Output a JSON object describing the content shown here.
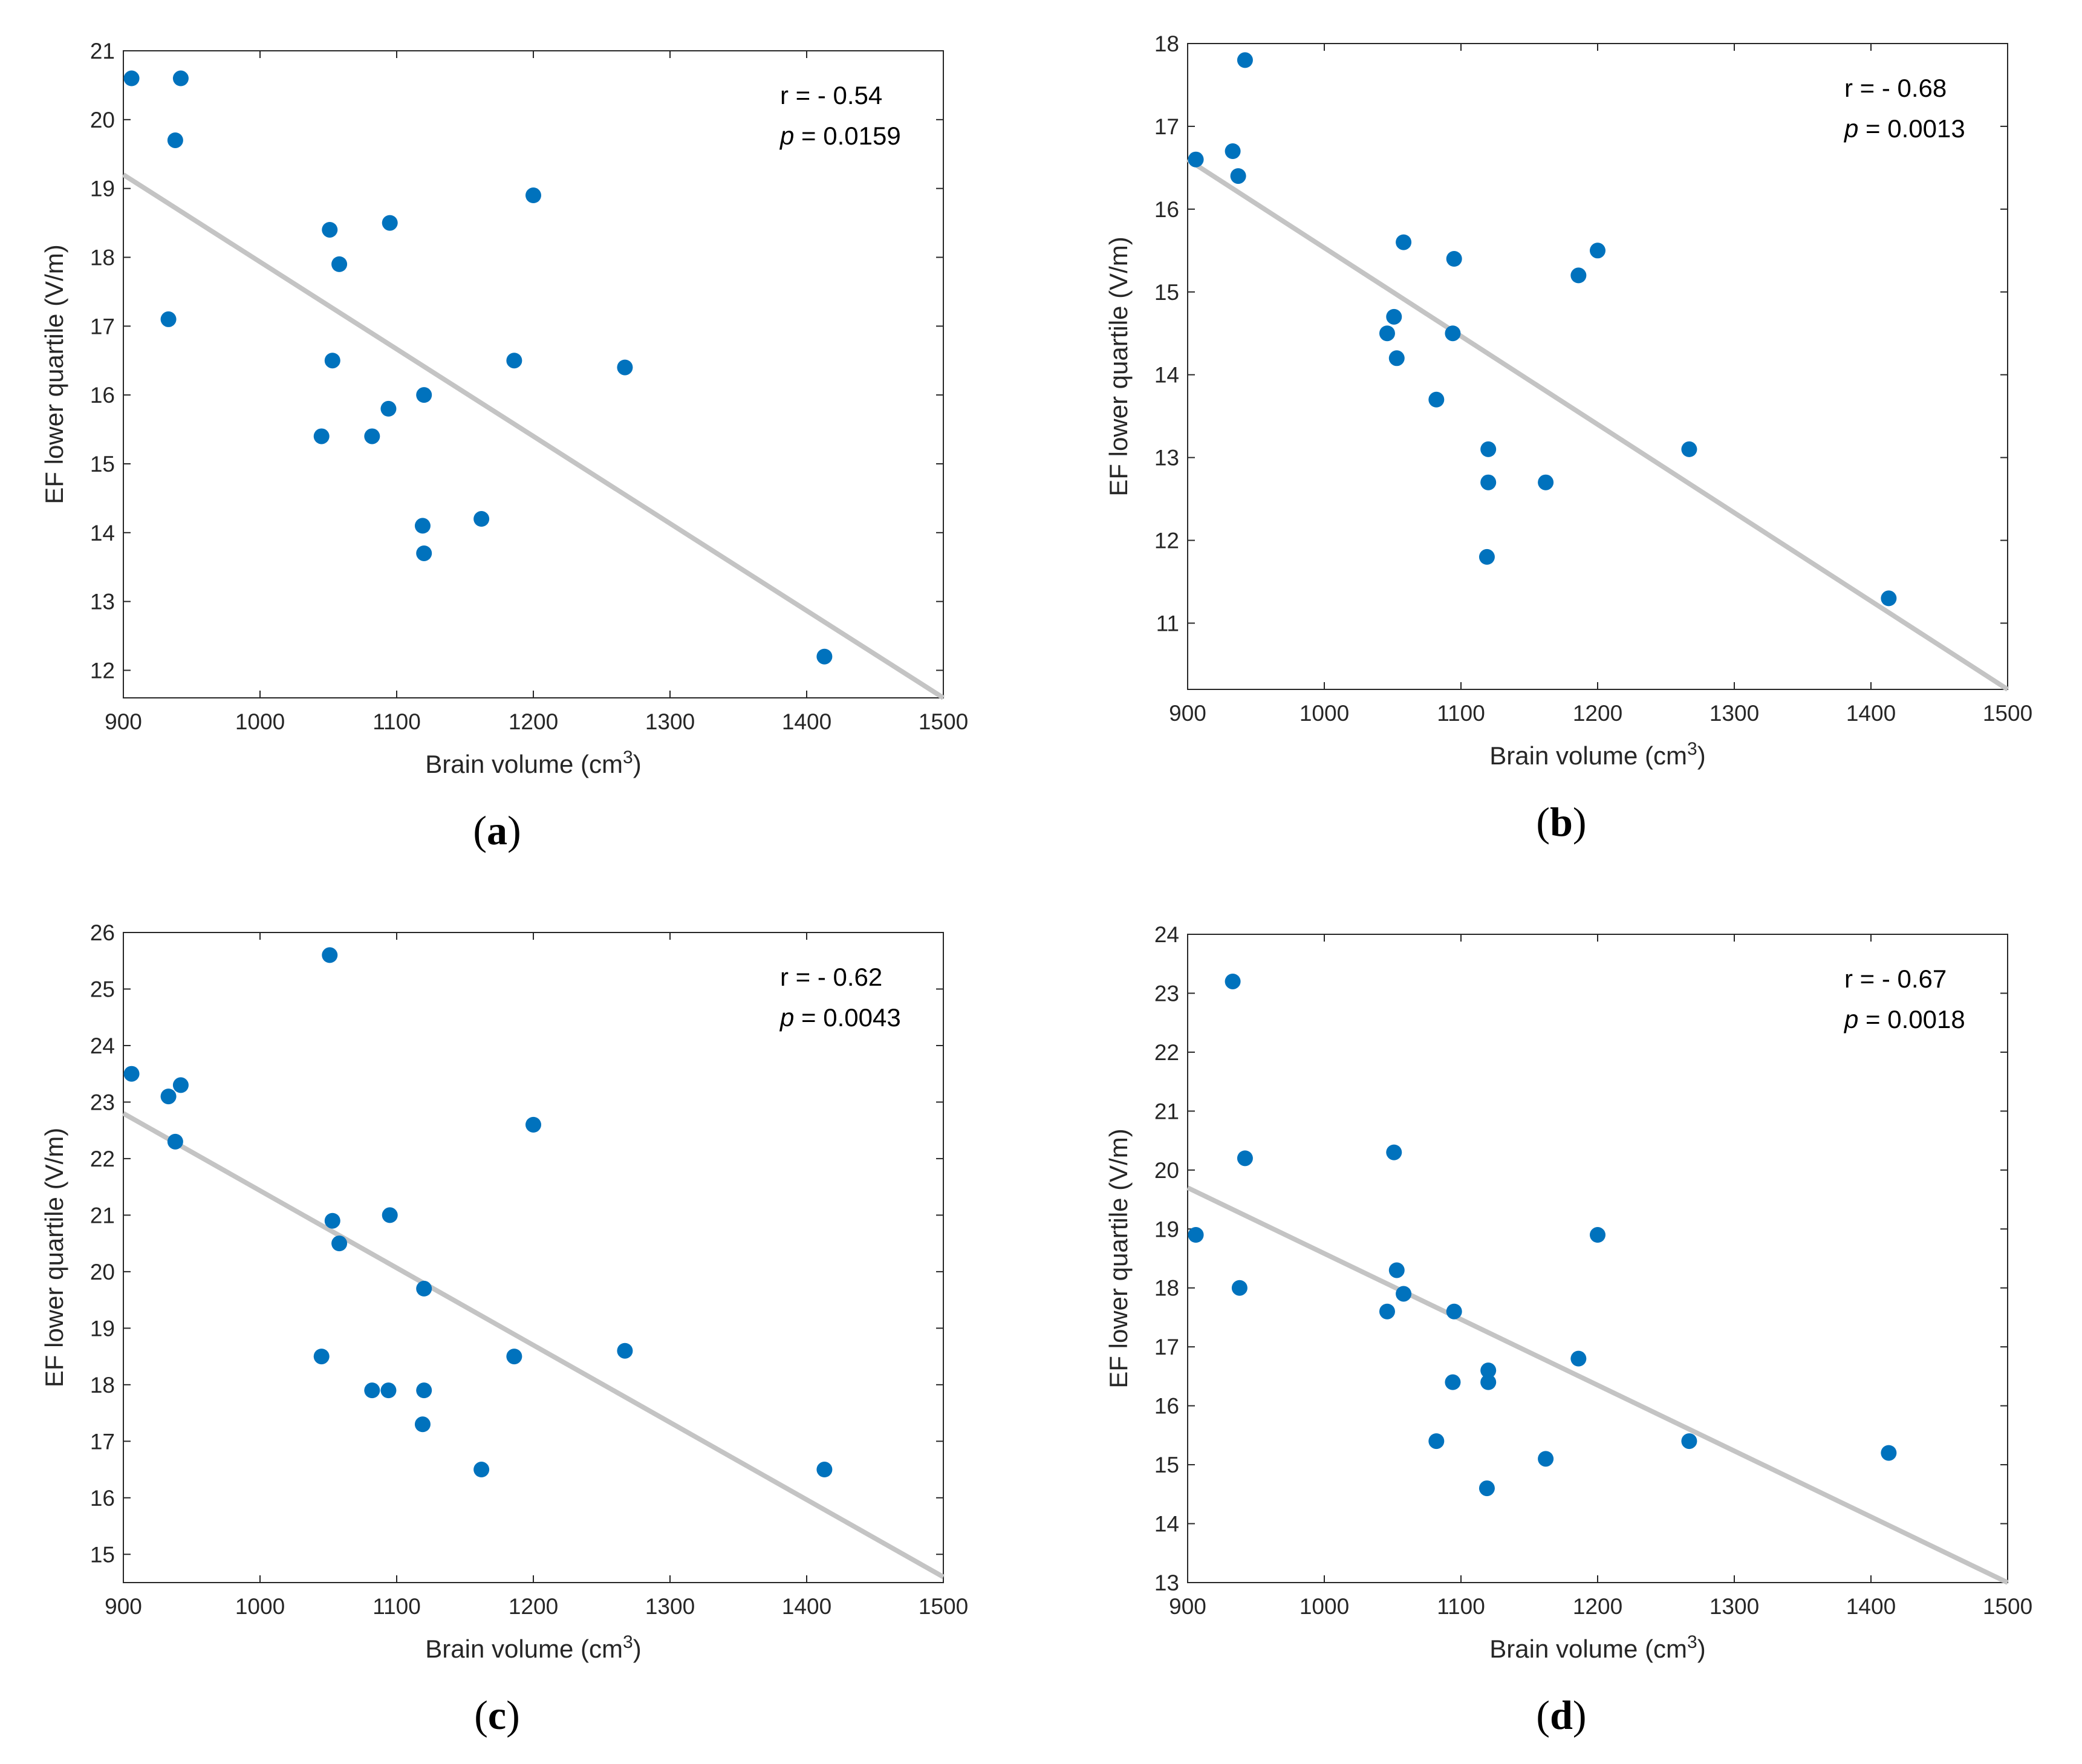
{
  "colors": {
    "point": "#0072BD",
    "fit_line": "#C4C4C4",
    "axis": "#262626",
    "background": "#ffffff"
  },
  "chart_data": [
    {
      "type": "scatter",
      "panel_label": "a",
      "xlabel": "Brain volume (cm",
      "xlabel_superscript": "3",
      "xlabel_suffix": ")",
      "ylabel": "EF lower quartile (V/m)",
      "xlim": [
        900,
        1500
      ],
      "ylim": [
        11.6,
        21
      ],
      "xticks": [
        900,
        1000,
        1100,
        1200,
        1300,
        1400,
        1500
      ],
      "yticks": [
        12,
        13,
        14,
        15,
        16,
        17,
        18,
        19,
        20,
        21
      ],
      "annotation": {
        "r_text": "r = - 0.54",
        "p_symbol": "p",
        "p_text": " = 0.0159"
      },
      "fit_line": {
        "x": [
          900,
          1500
        ],
        "y": [
          19.2,
          11.6
        ]
      },
      "points": {
        "x": [
          906,
          942,
          938,
          933,
          1051,
          1058,
          1053,
          1045,
          1095,
          1094,
          1082,
          1120,
          1119,
          1120,
          1162,
          1200,
          1186,
          1267,
          1413
        ],
        "y": [
          20.6,
          20.6,
          19.7,
          17.1,
          18.4,
          17.9,
          16.5,
          15.4,
          18.5,
          15.8,
          15.4,
          16.0,
          14.1,
          13.7,
          14.2,
          18.9,
          16.5,
          16.4,
          12.2
        ]
      }
    },
    {
      "type": "scatter",
      "panel_label": "b",
      "xlabel": "Brain volume (cm",
      "xlabel_superscript": "3",
      "xlabel_suffix": ")",
      "ylabel": "EF lower quartile (V/m)",
      "xlim": [
        900,
        1500
      ],
      "ylim": [
        10.2,
        18
      ],
      "xticks": [
        900,
        1000,
        1100,
        1200,
        1300,
        1400,
        1500
      ],
      "yticks": [
        11,
        12,
        13,
        14,
        15,
        16,
        17,
        18
      ],
      "annotation": {
        "r_text": "r = - 0.68",
        "p_symbol": "p",
        "p_text": " = 0.0013"
      },
      "fit_line": {
        "x": [
          900,
          1500
        ],
        "y": [
          16.6,
          10.2
        ]
      },
      "points": {
        "x": [
          906,
          942,
          933,
          937,
          1058,
          1051,
          1046,
          1053,
          1095,
          1094,
          1082,
          1120,
          1120,
          1119,
          1162,
          1186,
          1200,
          1267,
          1413
        ],
        "y": [
          16.6,
          17.8,
          16.7,
          16.4,
          15.6,
          14.7,
          14.5,
          14.2,
          15.4,
          14.5,
          13.7,
          13.1,
          12.7,
          11.8,
          12.7,
          15.2,
          15.5,
          13.1,
          11.3
        ]
      }
    },
    {
      "type": "scatter",
      "panel_label": "c",
      "xlabel": "Brain volume (cm",
      "xlabel_superscript": "3",
      "xlabel_suffix": ")",
      "ylabel": "EF lower quartile (V/m)",
      "xlim": [
        900,
        1500
      ],
      "ylim": [
        14.5,
        26
      ],
      "xticks": [
        900,
        1000,
        1100,
        1200,
        1300,
        1400,
        1500
      ],
      "yticks": [
        15,
        16,
        17,
        18,
        19,
        20,
        21,
        22,
        23,
        24,
        25,
        26
      ],
      "annotation": {
        "r_text": "r = - 0.62",
        "p_symbol": "p",
        "p_text": " = 0.0043"
      },
      "fit_line": {
        "x": [
          900,
          1500
        ],
        "y": [
          22.8,
          14.6
        ]
      },
      "points": {
        "x": [
          906,
          933,
          942,
          938,
          1051,
          1053,
          1058,
          1045,
          1095,
          1082,
          1094,
          1120,
          1120,
          1119,
          1162,
          1200,
          1186,
          1267,
          1413
        ],
        "y": [
          23.5,
          23.1,
          23.3,
          22.3,
          25.6,
          20.9,
          20.5,
          18.5,
          21.0,
          17.9,
          17.9,
          19.7,
          17.9,
          17.3,
          16.5,
          22.6,
          18.5,
          18.6,
          16.5
        ]
      }
    },
    {
      "type": "scatter",
      "panel_label": "d",
      "xlabel": "Brain volume (cm",
      "xlabel_superscript": "3",
      "xlabel_suffix": ")",
      "ylabel": "EF lower quartile (V/m)",
      "xlim": [
        900,
        1500
      ],
      "ylim": [
        13,
        24
      ],
      "xticks": [
        900,
        1000,
        1100,
        1200,
        1300,
        1400,
        1500
      ],
      "yticks": [
        13,
        14,
        15,
        16,
        17,
        18,
        19,
        20,
        21,
        22,
        23,
        24
      ],
      "annotation": {
        "r_text": "r = - 0.67",
        "p_symbol": "p",
        "p_text": " = 0.0018"
      },
      "fit_line": {
        "x": [
          900,
          1500
        ],
        "y": [
          19.7,
          13.0
        ]
      },
      "points": {
        "x": [
          906,
          933,
          942,
          938,
          1051,
          1053,
          1058,
          1046,
          1095,
          1094,
          1082,
          1120,
          1120,
          1119,
          1162,
          1200,
          1186,
          1267,
          1413
        ],
        "y": [
          18.9,
          23.2,
          20.2,
          18.0,
          20.3,
          18.3,
          17.9,
          17.6,
          17.6,
          16.4,
          15.4,
          16.6,
          16.4,
          14.6,
          15.1,
          18.9,
          16.8,
          15.4,
          15.2
        ]
      }
    }
  ]
}
